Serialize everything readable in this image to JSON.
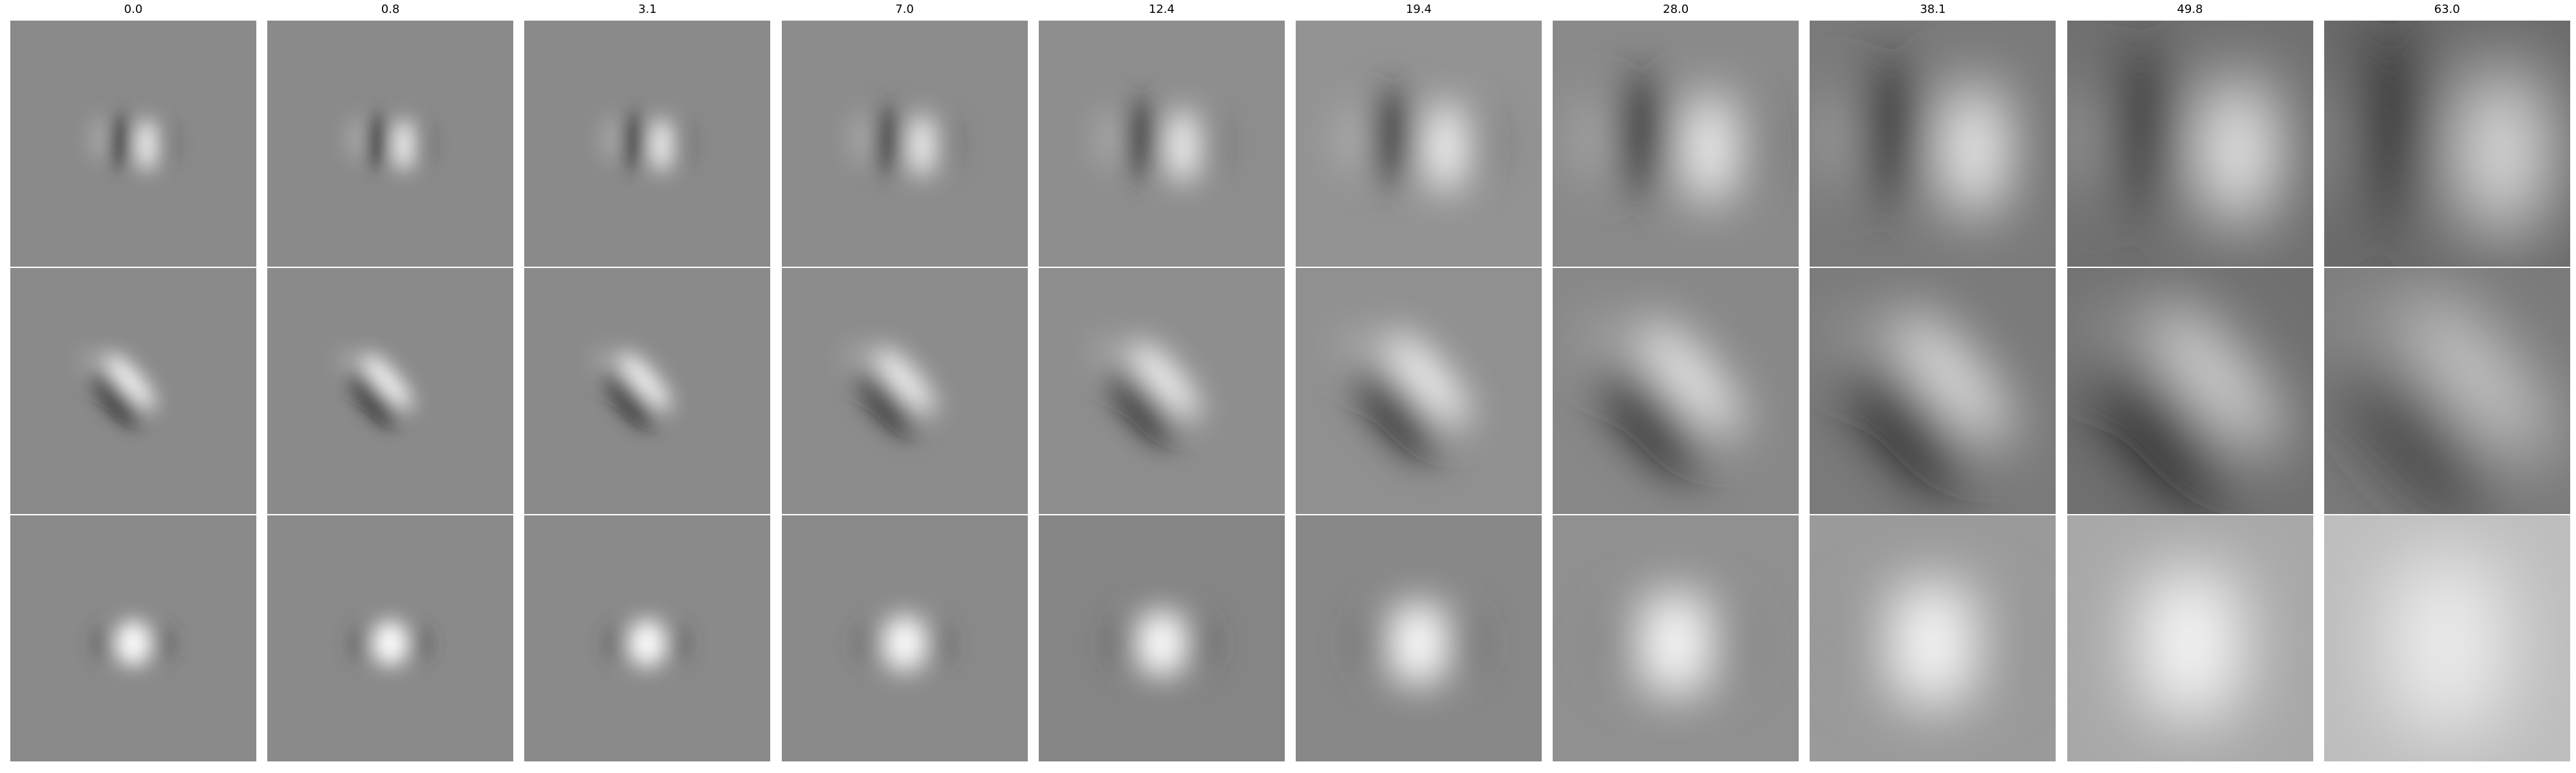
{
  "figure": {
    "column_titles": [
      "0.0",
      "0.8",
      "3.1",
      "7.0",
      "12.4",
      "19.4",
      "28.0",
      "38.1",
      "49.8",
      "63.0"
    ],
    "row_count": 3,
    "colors": {
      "background": "#ffffff",
      "neutral_gray": "#808080"
    },
    "panels": [
      [
        {
          "kind": "vertical-dipole",
          "bg": "#8a8a8a",
          "dark": "#000000",
          "light": "#ffffff",
          "spread": 0.05
        },
        {
          "kind": "vertical-dipole",
          "bg": "#8a8a8a",
          "dark": "#000000",
          "light": "#ffffff",
          "spread": 0.05
        },
        {
          "kind": "vertical-dipole",
          "bg": "#8a8a8a",
          "dark": "#000000",
          "light": "#ffffff",
          "spread": 0.055
        },
        {
          "kind": "vertical-dipole",
          "bg": "#8c8c8c",
          "dark": "#050505",
          "light": "#ffffff",
          "spread": 0.075
        },
        {
          "kind": "vertical-dipole",
          "bg": "#8e8e8e",
          "dark": "#050505",
          "light": "#ffffff",
          "spread": 0.1
        },
        {
          "kind": "vertical-dipole",
          "bg": "#939393",
          "dark": "#0a0a0a",
          "light": "#ffffff",
          "spread": 0.14
        },
        {
          "kind": "vertical-dipole",
          "bg": "#8a8a8a",
          "dark": "#050505",
          "light": "#ffffff",
          "spread": 0.19
        },
        {
          "kind": "vertical-dipole",
          "bg": "#7a7a7a",
          "dark": "#0a0a0a",
          "light": "#ffffff",
          "spread": 0.24
        },
        {
          "kind": "vertical-dipole",
          "bg": "#707070",
          "dark": "#1a1a1a",
          "light": "#ffffff",
          "spread": 0.28
        },
        {
          "kind": "vertical-dipole",
          "bg": "#6a6a6a",
          "dark": "#101010",
          "light": "#f4f4f4",
          "spread": 0.33
        }
      ],
      [
        {
          "kind": "diagonal-dipole",
          "bg": "#8a8a8a",
          "dark": "#000000",
          "light": "#ffffff",
          "spread": 0.05
        },
        {
          "kind": "diagonal-dipole",
          "bg": "#8a8a8a",
          "dark": "#000000",
          "light": "#ffffff",
          "spread": 0.05
        },
        {
          "kind": "diagonal-dipole",
          "bg": "#8a8a8a",
          "dark": "#000000",
          "light": "#ffffff",
          "spread": 0.055
        },
        {
          "kind": "diagonal-dipole",
          "bg": "#8c8c8c",
          "dark": "#000000",
          "light": "#ffffff",
          "spread": 0.075
        },
        {
          "kind": "diagonal-dipole",
          "bg": "#8e8e8e",
          "dark": "#050505",
          "light": "#ffffff",
          "spread": 0.1
        },
        {
          "kind": "diagonal-dipole",
          "bg": "#909090",
          "dark": "#050505",
          "light": "#ffffff",
          "spread": 0.14
        },
        {
          "kind": "diagonal-dipole",
          "bg": "#888888",
          "dark": "#050505",
          "light": "#f8f8f8",
          "spread": 0.19
        },
        {
          "kind": "diagonal-dipole",
          "bg": "#7a7a7a",
          "dark": "#050505",
          "light": "#f0f0f0",
          "spread": 0.23
        },
        {
          "kind": "diagonal-dipole",
          "bg": "#707070",
          "dark": "#000000",
          "light": "#e8e8e8",
          "spread": 0.27
        },
        {
          "kind": "diagonal-dipole",
          "bg": "#7a7a7a",
          "dark": "#303030",
          "light": "#d8d8d8",
          "spread": 0.31
        }
      ],
      [
        {
          "kind": "center-blob",
          "bg": "#8a8a8a",
          "dark": "#404040",
          "light": "#ffffff",
          "spread": 0.05
        },
        {
          "kind": "center-blob",
          "bg": "#8a8a8a",
          "dark": "#404040",
          "light": "#ffffff",
          "spread": 0.05
        },
        {
          "kind": "center-blob",
          "bg": "#8a8a8a",
          "dark": "#404040",
          "light": "#ffffff",
          "spread": 0.055
        },
        {
          "kind": "center-blob",
          "bg": "#8a8a8a",
          "dark": "#454545",
          "light": "#ffffff",
          "spread": 0.075
        },
        {
          "kind": "center-blob",
          "bg": "#858585",
          "dark": "#454545",
          "light": "#ffffff",
          "spread": 0.1
        },
        {
          "kind": "center-blob",
          "bg": "#888888",
          "dark": "#505050",
          "light": "#ffffff",
          "spread": 0.14
        },
        {
          "kind": "center-blob",
          "bg": "#909090",
          "dark": "#707070",
          "light": "#ffffff",
          "spread": 0.19
        },
        {
          "kind": "center-blob",
          "bg": "#9a9a9a",
          "dark": "#888888",
          "light": "#ffffff",
          "spread": 0.24
        },
        {
          "kind": "center-blob",
          "bg": "#a8a8a8",
          "dark": "#a0a0a0",
          "light": "#ffffff",
          "spread": 0.3
        },
        {
          "kind": "center-blob",
          "bg": "#bdbdbd",
          "dark": "#b8b8b8",
          "light": "#f4f4f4",
          "spread": 0.36
        }
      ]
    ]
  }
}
